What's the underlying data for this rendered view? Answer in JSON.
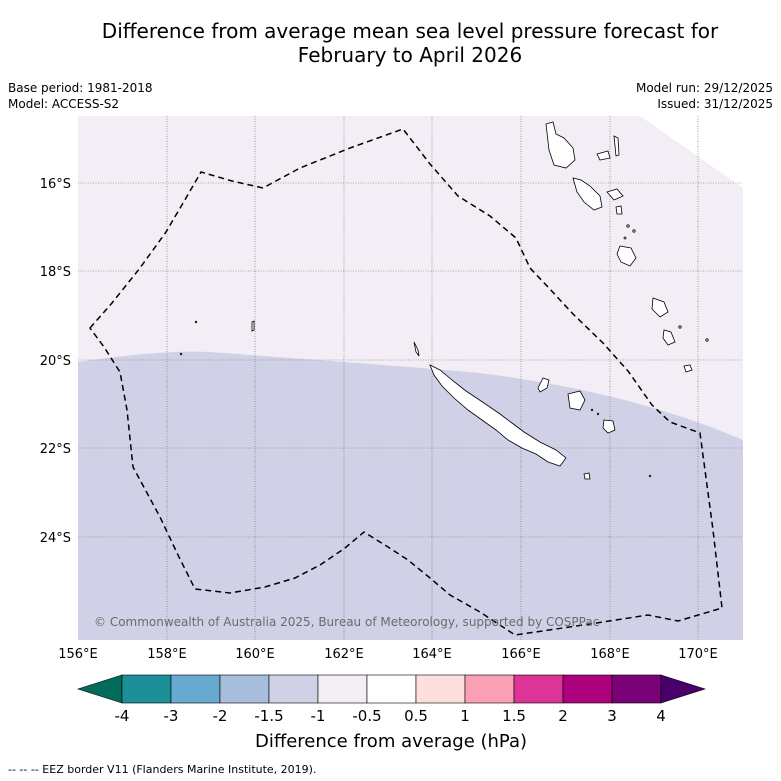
{
  "title": {
    "line1": "Difference from average mean sea level pressure forecast for",
    "line2": "February to April 2026"
  },
  "meta_left": {
    "base_period": "Base period: 1981-2018",
    "model": "Model: ACCESS-S2"
  },
  "meta_right": {
    "model_run": "Model run: 29/12/2025",
    "issued": "Issued: 31/12/2025"
  },
  "map": {
    "lon_range": [
      156,
      171
    ],
    "lat_range": [
      -26.8,
      -14.5
    ],
    "lat_ticks": [
      "16°S",
      "18°S",
      "20°S",
      "22°S",
      "24°S"
    ],
    "lon_ticks": [
      "156°E",
      "158°E",
      "160°E",
      "162°E",
      "164°E",
      "166°E",
      "168°E",
      "170°E"
    ],
    "copyright": "© Commonwealth of Australia 2025, Bureau of Meteorology, supported by COSPPac",
    "regions": [
      {
        "category": "-0.5 to -1 hPa",
        "color": "#f3edf5"
      },
      {
        "category": "-1 to -1.5 hPa",
        "color": "#d0d1e6"
      }
    ]
  },
  "colorbar": {
    "label": "Difference from average (hPa)",
    "ticks": [
      "-4",
      "-3",
      "-2",
      "-1.5",
      "-1",
      "-0.5",
      "0.5",
      "1",
      "1.5",
      "2",
      "3",
      "4"
    ],
    "colors": [
      "#016c59",
      "#1c9099",
      "#67a9cf",
      "#a6bddb",
      "#d0d1e6",
      "#f3edf5",
      "#ffffff",
      "#fde0dd",
      "#fa9fb5",
      "#dd3497",
      "#ae017e",
      "#7a0177",
      "#49006a"
    ]
  },
  "footer": {
    "legend": "-- -- -- EEZ border V11 (Flanders Marine Institute, 2019)."
  }
}
